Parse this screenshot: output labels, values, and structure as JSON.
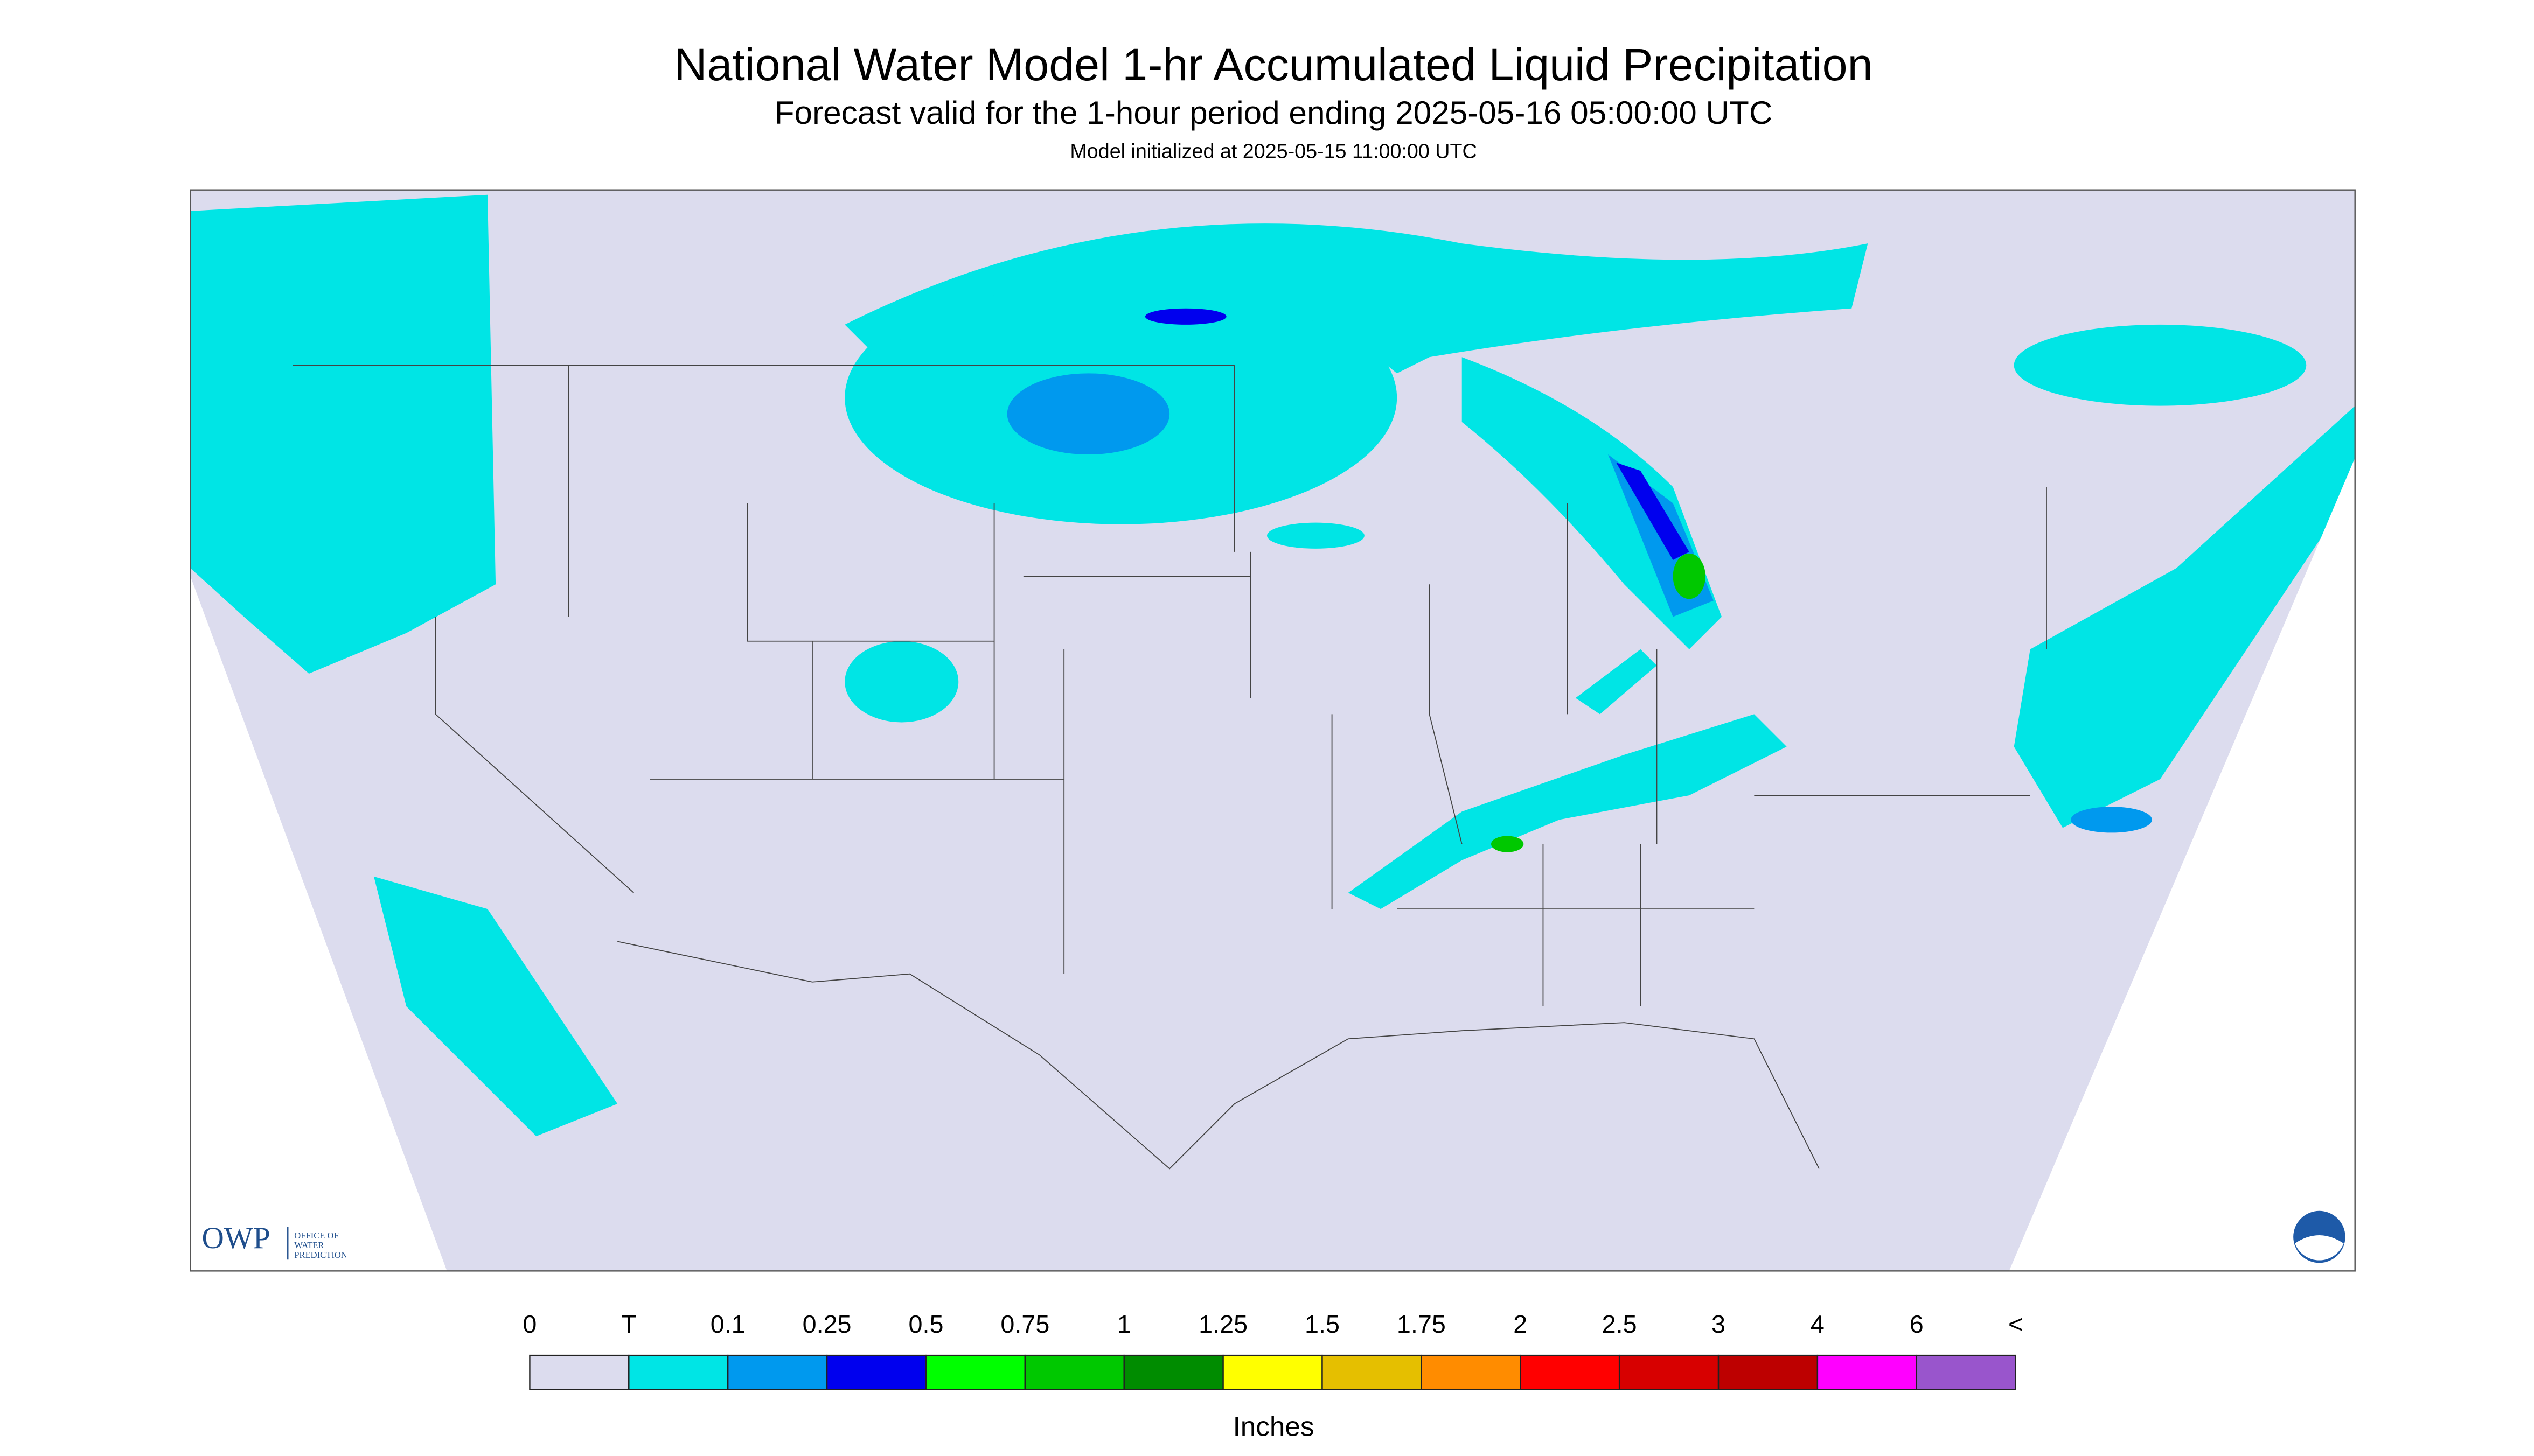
{
  "header": {
    "title": "National Water Model 1-hr Accumulated Liquid Precipitation",
    "subtitle": "Forecast valid for the 1-hour period ending 2025-05-16 05:00:00 UTC",
    "init": "Model initialized at 2025-05-15 11:00:00 UTC"
  },
  "legend": {
    "labels": [
      "0",
      "T",
      "0.1",
      "0.25",
      "0.5",
      "0.75",
      "1",
      "1.25",
      "1.5",
      "1.75",
      "2",
      "2.5",
      "3",
      "4",
      "6",
      "<"
    ],
    "colors": [
      "#dcdcee",
      "#00e5e5",
      "#0099ee",
      "#0000ee",
      "#00ff00",
      "#00c800",
      "#008c00",
      "#ffff00",
      "#e5bf00",
      "#ff8c00",
      "#ff0000",
      "#d70000",
      "#bd0000",
      "#ff00ff",
      "#9955cc"
    ],
    "unit": "Inches"
  },
  "logo": {
    "abbr": "OWP",
    "lines": [
      "OFFICE OF",
      "WATER",
      "PREDICTION"
    ]
  }
}
